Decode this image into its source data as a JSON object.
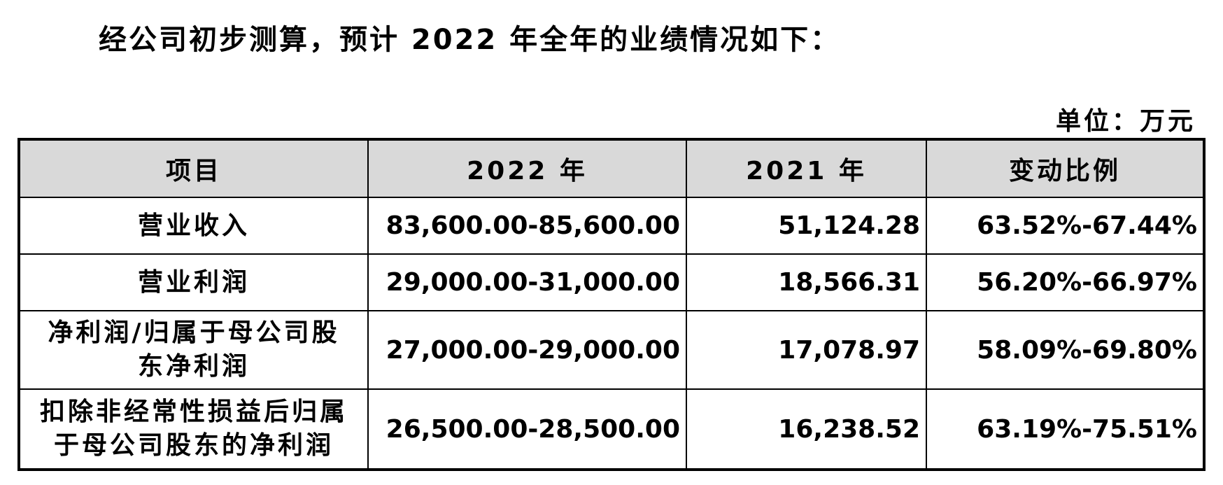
{
  "header": {
    "title": "经公司初步测算，预计 2022 年全年的业绩情况如下：",
    "unit": "单位：万元"
  },
  "table": {
    "columns": [
      "项目",
      "2022 年",
      "2021 年",
      "变动比例"
    ],
    "rows": [
      [
        "营业收入",
        "83,600.00-85,600.00",
        "51,124.28",
        "63.52%-67.44%"
      ],
      [
        "营业利润",
        "29,000.00-31,000.00",
        "18,566.31",
        "56.20%-66.97%"
      ],
      [
        "净利润/归属于母公司股东净利润",
        "27,000.00-29,000.00",
        "17,078.97",
        "58.09%-69.80%"
      ],
      [
        "扣除非经常性损益后归属于母公司股东的净利润",
        "26,500.00-28,500.00",
        "16,238.52",
        "63.19%-75.51%"
      ]
    ]
  }
}
